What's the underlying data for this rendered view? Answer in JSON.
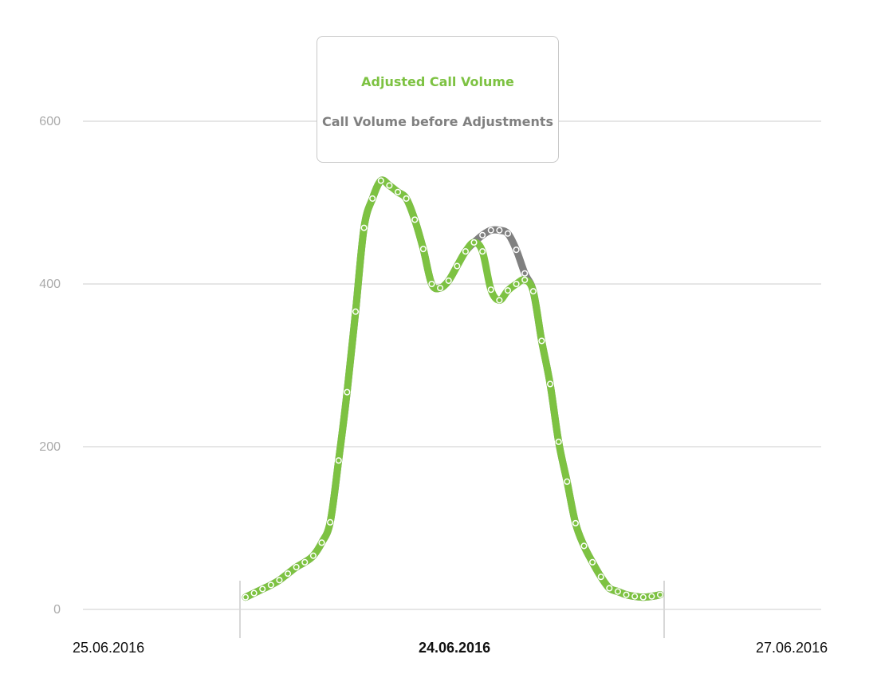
{
  "chart_data": {
    "type": "line",
    "y_ticks": [
      0,
      200,
      400,
      600
    ],
    "ylim": [
      0,
      600
    ],
    "x_labels": [
      {
        "text": "25.06.2016",
        "bold": false
      },
      {
        "text": "24.06.2016",
        "bold": true
      },
      {
        "text": "27.06.2016",
        "bold": false
      }
    ],
    "grid": true,
    "legend_position": "top-center",
    "colors": {
      "adjusted": "#7dc242",
      "before": "#808080",
      "grid": "#cccccc",
      "tick_label": "#aaaaaa"
    },
    "series": [
      {
        "name": "Adjusted Call Volume",
        "color": "#7dc242",
        "values": [
          15,
          20,
          25,
          30,
          36,
          44,
          52,
          58,
          66,
          82,
          107,
          183,
          267,
          366,
          469,
          505,
          527,
          521,
          513,
          505,
          479,
          443,
          400,
          395,
          404,
          422,
          440,
          451,
          440,
          393,
          380,
          392,
          400,
          405,
          391,
          330,
          277,
          206,
          157,
          106,
          78,
          58,
          40,
          26,
          22,
          18,
          16,
          15,
          16,
          18
        ]
      },
      {
        "name": "Call Volume before Adjustments",
        "color": "#808080",
        "values": [
          15,
          20,
          25,
          30,
          36,
          44,
          52,
          58,
          66,
          82,
          107,
          183,
          267,
          366,
          469,
          505,
          527,
          521,
          513,
          505,
          479,
          443,
          400,
          395,
          404,
          422,
          440,
          451,
          460,
          466,
          466,
          462,
          442,
          413,
          391,
          330,
          277,
          206,
          157,
          106,
          78,
          58,
          40,
          26,
          22,
          18,
          16,
          15,
          16,
          18
        ]
      }
    ]
  }
}
